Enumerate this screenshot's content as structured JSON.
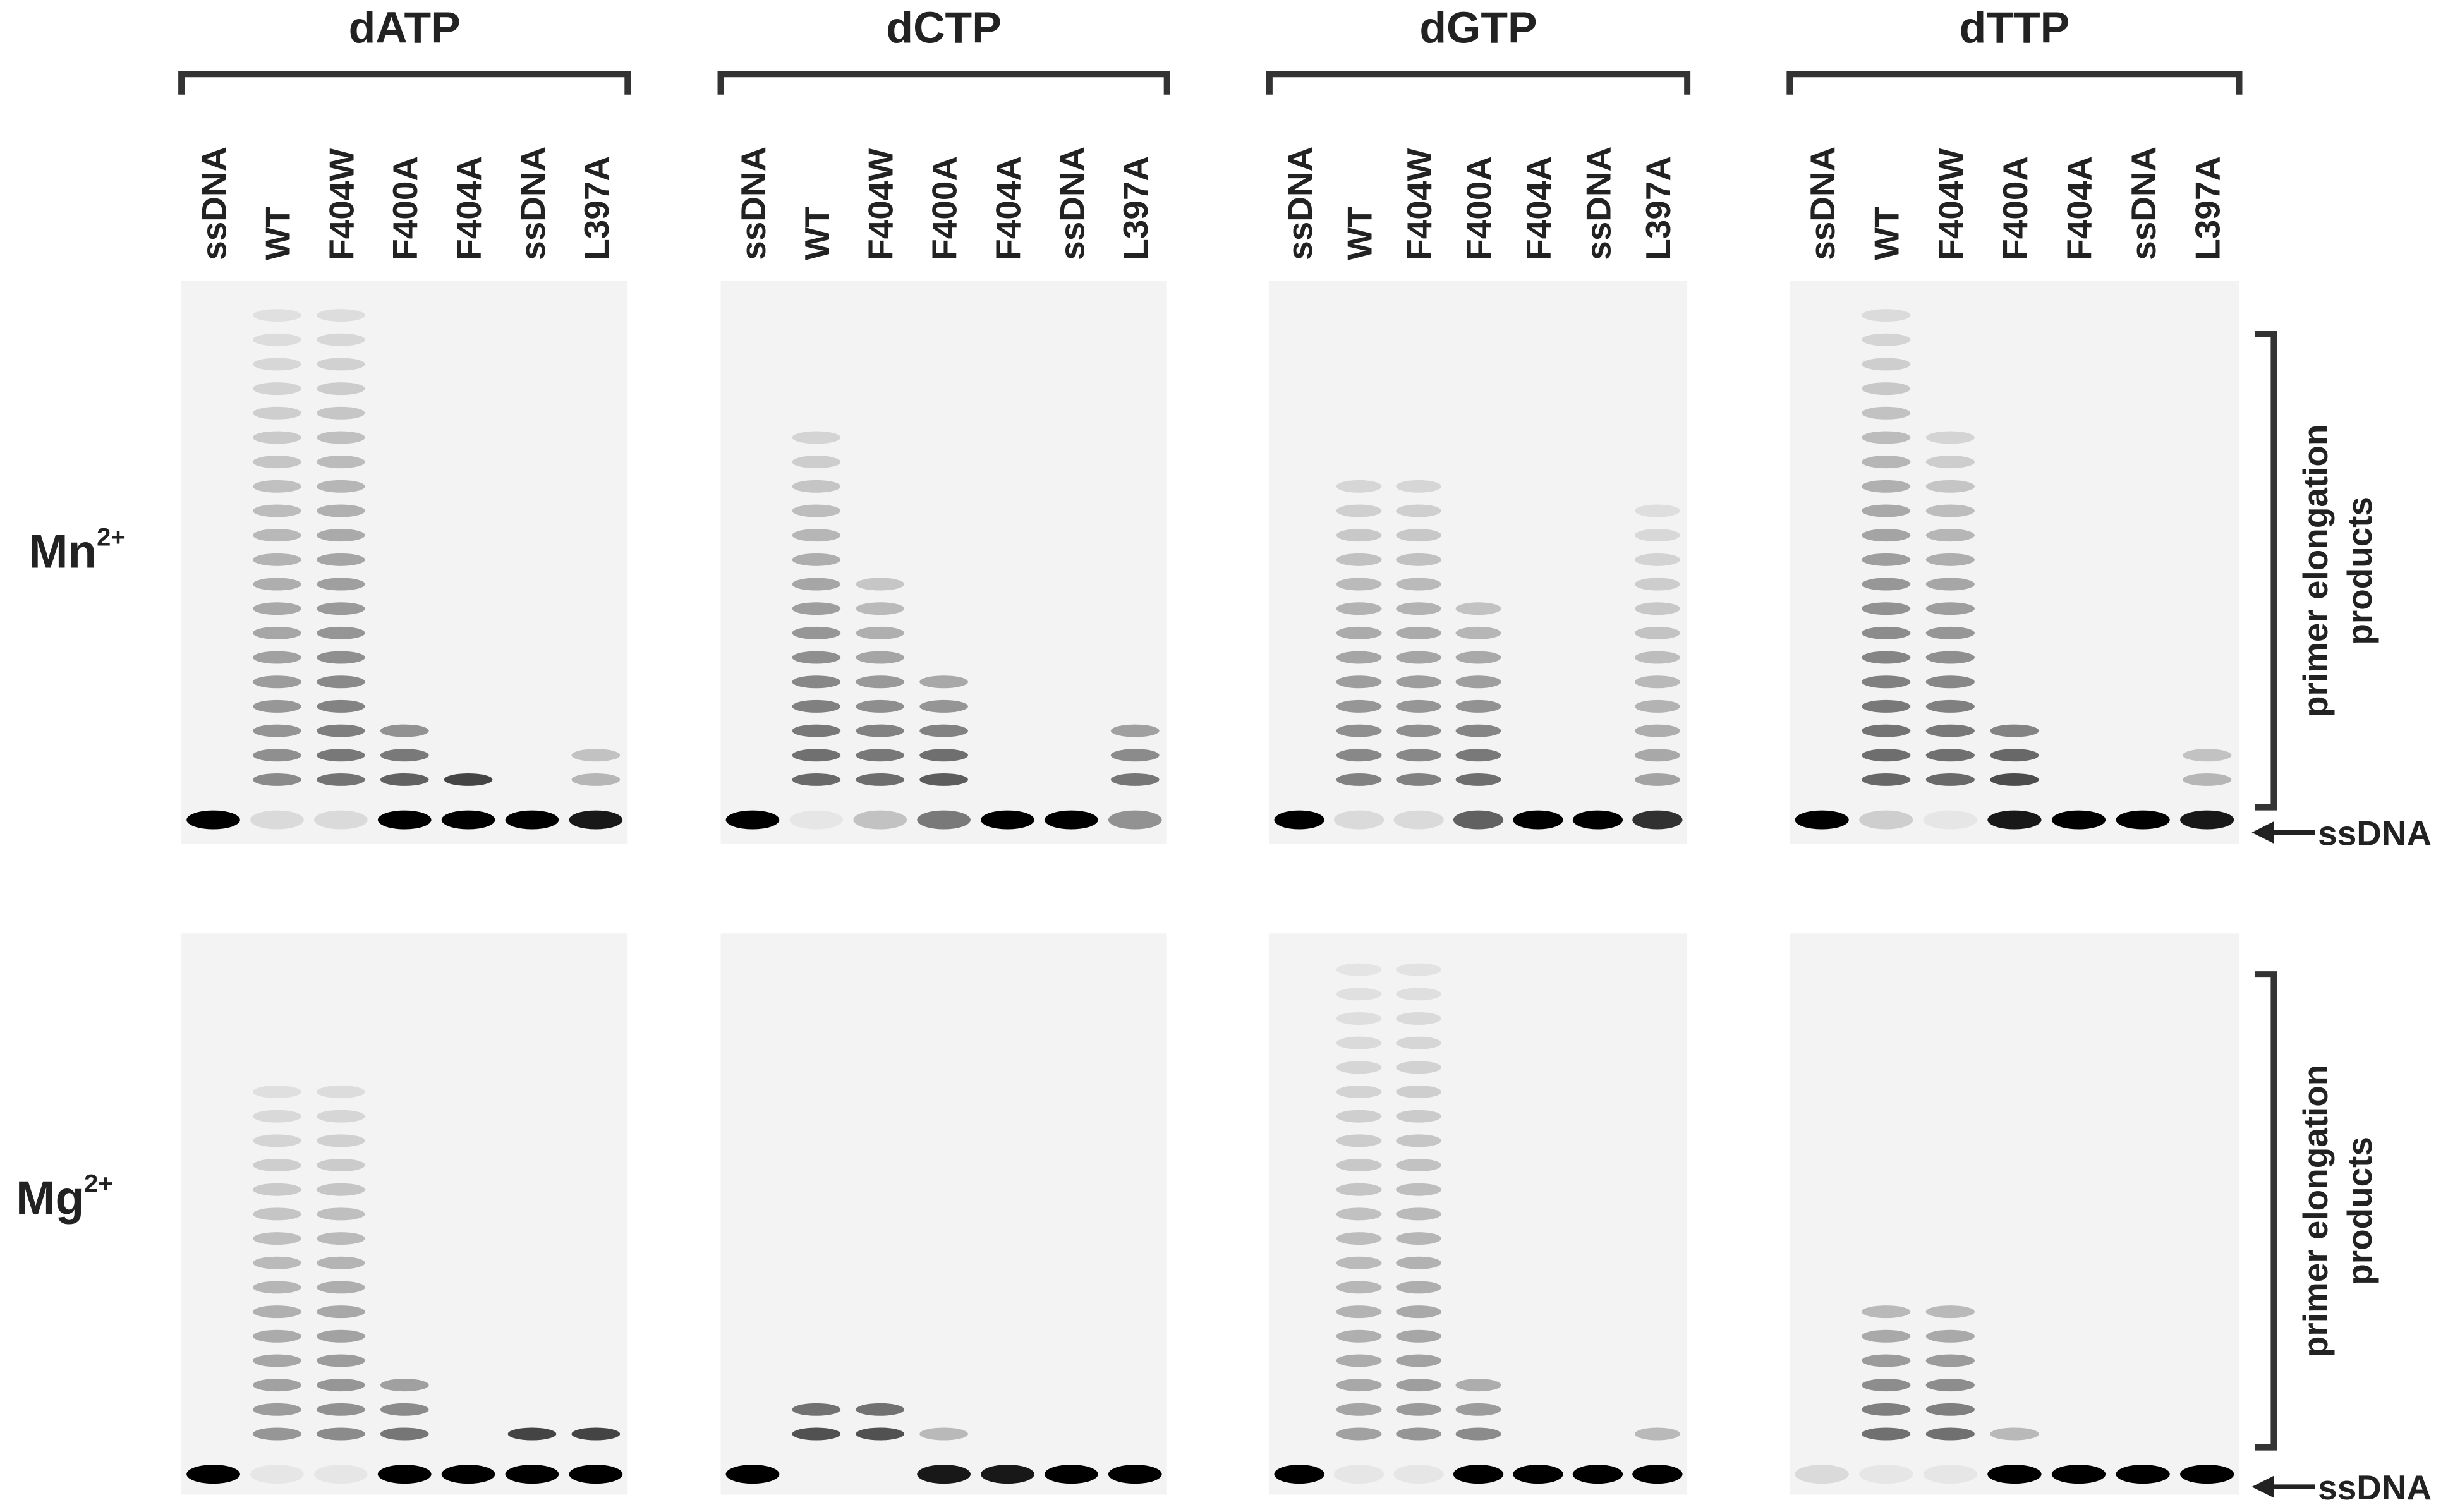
{
  "panels": [
    {
      "title": "dATP",
      "lanes": [
        "ssDNA",
        "WT",
        "F404W",
        "F400A",
        "F404A",
        "ssDNA",
        "L397A"
      ]
    },
    {
      "title": "dCTP",
      "lanes": [
        "ssDNA",
        "WT",
        "F404W",
        "F400A",
        "F404A",
        "ssDNA",
        "L397A"
      ]
    },
    {
      "title": "dGTP",
      "lanes": [
        "ssDNA",
        "WT",
        "F404W",
        "F400A",
        "F404A",
        "ssDNA",
        "L397A"
      ]
    },
    {
      "title": "dTTP",
      "lanes": [
        "ssDNA",
        "WT",
        "F404W",
        "F400A",
        "F404A",
        "ssDNA",
        "L397A"
      ]
    }
  ],
  "rows": [
    {
      "ion": "Mn",
      "charge": "2+",
      "bracket_label": [
        "primer elongation",
        "products"
      ],
      "arrow_label": "ssDNA"
    },
    {
      "ion": "Mg",
      "charge": "2+",
      "bracket_label": [
        "primer elongation",
        "products"
      ],
      "arrow_label": "ssDNA"
    }
  ]
}
